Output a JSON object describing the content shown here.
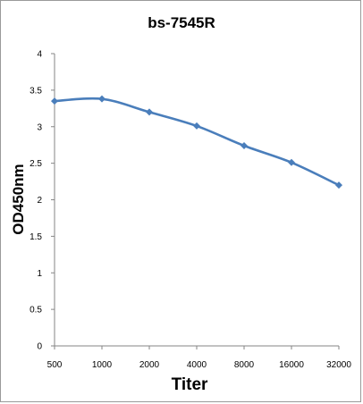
{
  "chart_data": {
    "type": "line",
    "title": "bs-7545R",
    "xlabel": "Titer",
    "ylabel": "OD450nm",
    "categories": [
      "500",
      "1000",
      "2000",
      "4000",
      "8000",
      "16000",
      "32000"
    ],
    "series": [
      {
        "values": [
          3.35,
          3.38,
          3.2,
          3.01,
          2.74,
          2.51,
          2.2
        ]
      }
    ],
    "ylim": [
      0,
      4
    ],
    "yticks": [
      "0",
      "0.5",
      "1",
      "1.5",
      "2",
      "2.5",
      "3",
      "3.5",
      "4"
    ],
    "grid": false,
    "legend": "none",
    "colors": {
      "series": "#4a7ebb",
      "axis": "#868686"
    }
  }
}
